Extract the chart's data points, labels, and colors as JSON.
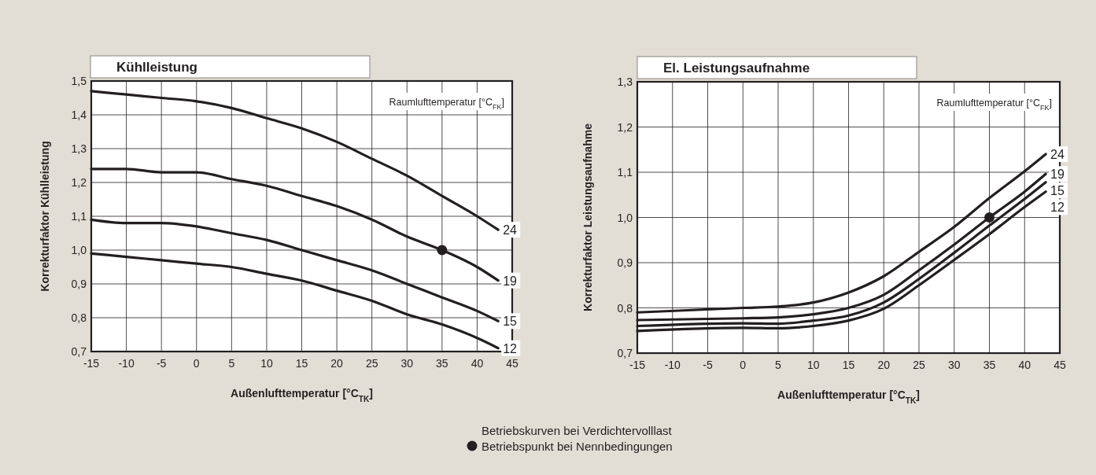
{
  "chart_data": [
    {
      "type": "line",
      "title": "Kühlleistung",
      "xlabel": "Außenlufttemperatur [°C$_{TK}$]",
      "ylabel": "Korrekturfaktor Kühlleistung",
      "annotations": [
        "Raumlufttemperatur [°C$_{FK}$]",
        "Betriebskurven bei Verdichtervolllast"
      ],
      "xlim": [
        -15,
        45
      ],
      "xticks": [
        -15,
        -10,
        -5,
        0,
        5,
        10,
        15,
        20,
        25,
        30,
        35,
        40,
        45
      ],
      "ylim": [
        0.7,
        1.5
      ],
      "yticks": [
        {
          "value": 0.7,
          "label": "0,7"
        },
        {
          "value": 0.8,
          "label": "0,8"
        },
        {
          "value": 0.9,
          "label": "0,9"
        },
        {
          "value": 1.0,
          "label": "1,0"
        },
        {
          "value": 1.1,
          "label": "1,1"
        },
        {
          "value": 1.2,
          "label": "1,2"
        },
        {
          "value": 1.3,
          "label": "1,3"
        },
        {
          "value": 1.4,
          "label": "1,4"
        },
        {
          "value": 1.5,
          "label": "1,5"
        }
      ],
      "grid": true,
      "legend": "bottom",
      "marker": "none",
      "line_style": "solid",
      "series": [
        {
          "name": "24",
          "type": "line",
          "color": "#231f20",
          "x": [
            -15,
            -10,
            -5,
            0,
            5,
            10,
            15,
            20,
            25,
            30,
            35,
            40,
            43
          ],
          "values": [
            1.47,
            1.46,
            1.45,
            1.44,
            1.42,
            1.39,
            1.36,
            1.32,
            1.27,
            1.22,
            1.16,
            1.1,
            1.06
          ]
        },
        {
          "name": "19",
          "type": "line",
          "color": "#231f20",
          "x": [
            -15,
            -10,
            -5,
            0,
            5,
            10,
            15,
            20,
            25,
            30,
            35,
            40,
            43
          ],
          "values": [
            1.24,
            1.24,
            1.23,
            1.23,
            1.21,
            1.19,
            1.16,
            1.13,
            1.09,
            1.04,
            1.0,
            0.95,
            0.91
          ]
        },
        {
          "name": "15",
          "type": "line",
          "color": "#231f20",
          "x": [
            -15,
            -10,
            -5,
            0,
            5,
            10,
            15,
            20,
            25,
            30,
            35,
            40,
            43
          ],
          "values": [
            1.09,
            1.08,
            1.08,
            1.07,
            1.05,
            1.03,
            1.0,
            0.97,
            0.94,
            0.9,
            0.86,
            0.82,
            0.79
          ]
        },
        {
          "name": "12",
          "type": "line",
          "color": "#231f20",
          "x": [
            -15,
            -10,
            -5,
            0,
            5,
            10,
            15,
            20,
            25,
            30,
            35,
            40,
            43
          ],
          "values": [
            0.99,
            0.98,
            0.97,
            0.96,
            0.95,
            0.93,
            0.91,
            0.88,
            0.85,
            0.81,
            0.78,
            0.74,
            0.71
          ]
        },
        {
          "name": "Betriebspunkt bei Nennbedingungen",
          "type": "scatter",
          "marker": "circle",
          "color": "#231f20",
          "x": [
            35
          ],
          "values": [
            1.0
          ]
        }
      ]
    },
    {
      "type": "line",
      "title": "El. Leistungsaufnahme",
      "xlabel": "Außenlufttemperatur [°C$_{TK}$]",
      "ylabel": "Korrekturfaktor Leistungsaufnahme",
      "annotations": [
        "Raumlufttemperatur [°C$_{FK}$]"
      ],
      "xlim": [
        -15,
        45
      ],
      "xticks": [
        -15,
        -10,
        -5,
        0,
        5,
        10,
        15,
        20,
        25,
        30,
        35,
        40,
        45
      ],
      "ylim": [
        0.7,
        1.3
      ],
      "yticks": [
        {
          "value": 0.7,
          "label": "0,7"
        },
        {
          "value": 0.8,
          "label": "0,8"
        },
        {
          "value": 0.9,
          "label": "0,9"
        },
        {
          "value": 1.0,
          "label": "1,0"
        },
        {
          "value": 1.1,
          "label": "1,1"
        },
        {
          "value": 1.2,
          "label": "1,2"
        },
        {
          "value": 1.3,
          "label": "1,3"
        }
      ],
      "grid": true,
      "marker": "none",
      "line_style": "solid",
      "series": [
        {
          "name": "24",
          "type": "line",
          "color": "#231f20",
          "x": [
            -15,
            0,
            5,
            10,
            15,
            20,
            25,
            30,
            35,
            40,
            43
          ],
          "values": [
            0.79,
            0.8,
            0.803,
            0.812,
            0.834,
            0.87,
            0.924,
            0.979,
            1.043,
            1.102,
            1.14
          ]
        },
        {
          "name": "19",
          "type": "line",
          "color": "#231f20",
          "x": [
            -15,
            0,
            5,
            10,
            15,
            20,
            25,
            30,
            35,
            40,
            43
          ],
          "values": [
            0.773,
            0.777,
            0.779,
            0.786,
            0.8,
            0.829,
            0.883,
            0.94,
            1.0,
            1.057,
            1.096
          ]
        },
        {
          "name": "15",
          "type": "line",
          "color": "#231f20",
          "x": [
            -15,
            0,
            5,
            10,
            15,
            20,
            25,
            30,
            35,
            40,
            43
          ],
          "values": [
            0.76,
            0.766,
            0.765,
            0.772,
            0.783,
            0.812,
            0.864,
            0.922,
            0.982,
            1.041,
            1.078
          ]
        },
        {
          "name": "12",
          "type": "line",
          "color": "#231f20",
          "x": [
            -15,
            0,
            5,
            10,
            15,
            20,
            25,
            30,
            35,
            40,
            43
          ],
          "values": [
            0.749,
            0.756,
            0.755,
            0.76,
            0.772,
            0.798,
            0.85,
            0.906,
            0.963,
            1.023,
            1.057
          ]
        },
        {
          "type": "scatter",
          "marker": "circle",
          "color": "#231f20",
          "x": [
            35
          ],
          "values": [
            1.0
          ]
        }
      ]
    }
  ]
}
